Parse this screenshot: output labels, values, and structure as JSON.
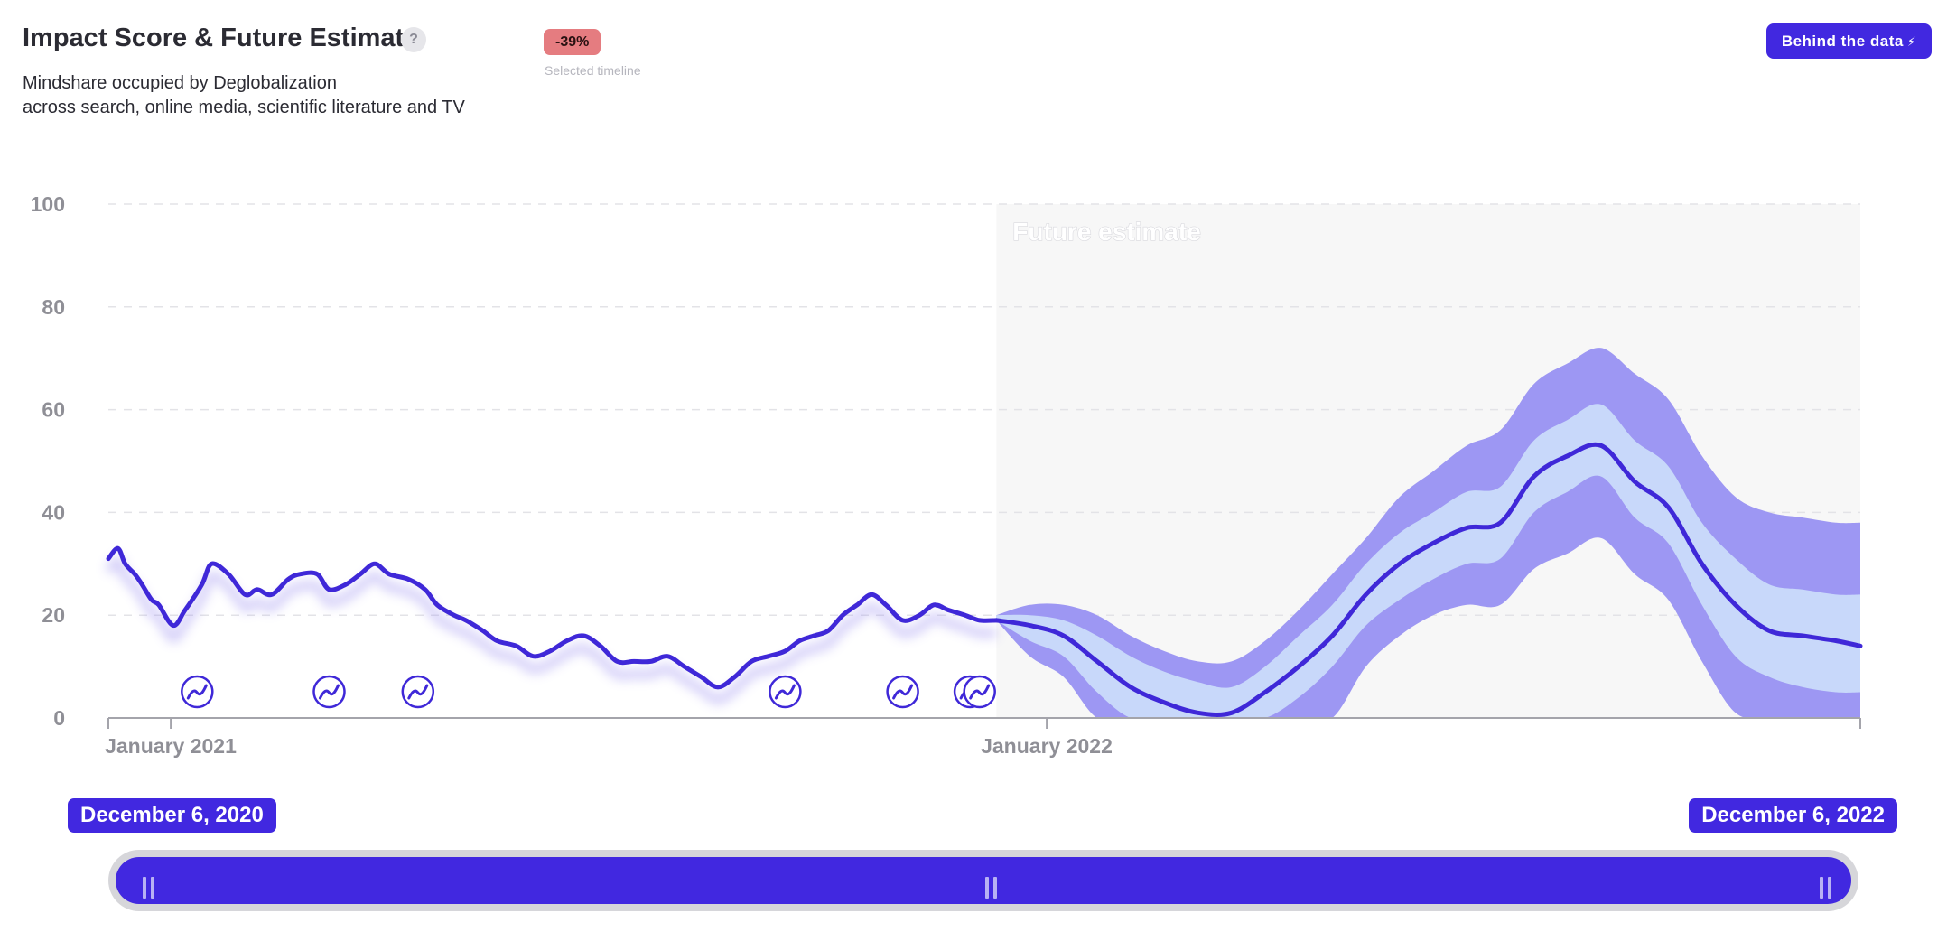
{
  "header": {
    "title": "Impact Score & Future Estimate",
    "help_label": "?",
    "subtitle_line1": "Mindshare occupied by Deglobalization",
    "subtitle_line2": "across search, online media, scientific literature and TV",
    "change_badge": "-39%",
    "change_caption": "Selected timeline",
    "behind_button": "Behind the data",
    "behind_button_icon": "bolt-icon"
  },
  "colors": {
    "line": "#3f28d8",
    "band_outer": "#9d97f3",
    "band_inner": "#c8d8fa",
    "future_bg": "#f7f7f7",
    "badge": "#e57c80",
    "accent": "#4128e0"
  },
  "chart_data": {
    "type": "line",
    "x_start": "December 6, 2020",
    "x_end": "December 6, 2022",
    "ylim": [
      0,
      100
    ],
    "y_ticks": [
      "0",
      "20",
      "40",
      "60",
      "80",
      "100"
    ],
    "x_tick_labels": [
      {
        "label": "January 2021",
        "date": "2021-01-01"
      },
      {
        "label": "January 2022",
        "date": "2022-01-01"
      }
    ],
    "grid": true,
    "future_label": "Future estimate",
    "future_start": "2021-12-11",
    "historical": {
      "x": [
        "2020-12-06",
        "2020-12-10",
        "2020-12-13",
        "2020-12-17",
        "2020-12-20",
        "2020-12-24",
        "2020-12-27",
        "2021-01-02",
        "2021-01-07",
        "2021-01-14",
        "2021-01-18",
        "2021-01-25",
        "2021-02-01",
        "2021-02-06",
        "2021-02-12",
        "2021-02-19",
        "2021-02-24",
        "2021-03-03",
        "2021-03-08",
        "2021-03-15",
        "2021-03-21",
        "2021-03-27",
        "2021-04-02",
        "2021-04-10",
        "2021-04-17",
        "2021-04-22",
        "2021-04-29",
        "2021-05-04",
        "2021-05-11",
        "2021-05-17",
        "2021-05-25",
        "2021-06-01",
        "2021-06-08",
        "2021-06-15",
        "2021-06-22",
        "2021-06-29",
        "2021-07-06",
        "2021-07-13",
        "2021-07-20",
        "2021-07-27",
        "2021-08-03",
        "2021-08-10",
        "2021-08-17",
        "2021-08-24",
        "2021-08-31",
        "2021-09-07",
        "2021-09-14",
        "2021-09-20",
        "2021-09-26",
        "2021-10-02",
        "2021-10-08",
        "2021-10-14",
        "2021-10-20",
        "2021-10-26",
        "2021-11-02",
        "2021-11-09",
        "2021-11-15",
        "2021-11-21",
        "2021-11-28",
        "2021-12-04",
        "2021-12-11"
      ],
      "y": [
        31,
        33,
        30,
        28,
        26,
        23,
        22,
        18,
        21,
        26,
        30,
        28,
        24,
        25,
        24,
        27,
        28,
        28,
        25,
        26,
        28,
        30,
        28,
        27,
        25,
        22,
        20,
        19,
        17,
        15,
        14,
        12,
        13,
        15,
        16,
        14,
        11,
        11,
        11,
        12,
        10,
        8,
        6,
        8,
        11,
        12,
        13,
        15,
        16,
        17,
        20,
        22,
        24,
        22,
        19,
        20,
        22,
        21,
        20,
        19,
        19
      ]
    },
    "forecast": {
      "x": [
        "2021-12-11",
        "2021-12-25",
        "2022-01-08",
        "2022-01-22",
        "2022-02-05",
        "2022-02-19",
        "2022-03-05",
        "2022-03-19",
        "2022-04-02",
        "2022-04-16",
        "2022-04-30",
        "2022-05-14",
        "2022-05-28",
        "2022-06-11",
        "2022-06-25",
        "2022-07-09",
        "2022-07-23",
        "2022-08-06",
        "2022-08-20",
        "2022-09-03",
        "2022-09-17",
        "2022-10-01",
        "2022-10-15",
        "2022-10-29",
        "2022-11-12",
        "2022-11-26",
        "2022-12-06"
      ],
      "y": [
        19,
        18,
        16,
        11,
        6,
        3,
        1,
        1,
        5,
        10,
        16,
        24,
        30,
        34,
        37,
        38,
        47,
        51,
        53,
        46,
        41,
        30,
        22,
        17,
        16,
        15,
        14
      ],
      "inner_band": {
        "lower": [
          19,
          15,
          12,
          5,
          0,
          0,
          0,
          0,
          0,
          4,
          10,
          18,
          23,
          27,
          30,
          31,
          40,
          44,
          47,
          39,
          34,
          22,
          12,
          8,
          6,
          5,
          5
        ],
        "upper": [
          20,
          20,
          19,
          16,
          12,
          9,
          7,
          6,
          10,
          16,
          22,
          30,
          36,
          40,
          44,
          45,
          54,
          58,
          61,
          54,
          49,
          38,
          31,
          26,
          25,
          24,
          24
        ]
      },
      "outer_band": {
        "lower": [
          19,
          12,
          8,
          0,
          0,
          0,
          0,
          0,
          0,
          0,
          0,
          10,
          16,
          20,
          22,
          22,
          29,
          32,
          35,
          28,
          23,
          11,
          1,
          0,
          0,
          0,
          0
        ],
        "upper": [
          20,
          22,
          22,
          20,
          16,
          13,
          11,
          11,
          15,
          21,
          28,
          35,
          43,
          48,
          53,
          56,
          65,
          69,
          72,
          67,
          62,
          51,
          43,
          40,
          39,
          38,
          38
        ]
      }
    },
    "event_markers": [
      "2021-01-12",
      "2021-03-08",
      "2021-04-14",
      "2021-09-14",
      "2021-11-02",
      "2021-11-30",
      "2021-12-04"
    ],
    "range_slider": {
      "start_label": "December 6, 2020",
      "end_label": "December 6, 2022"
    }
  }
}
